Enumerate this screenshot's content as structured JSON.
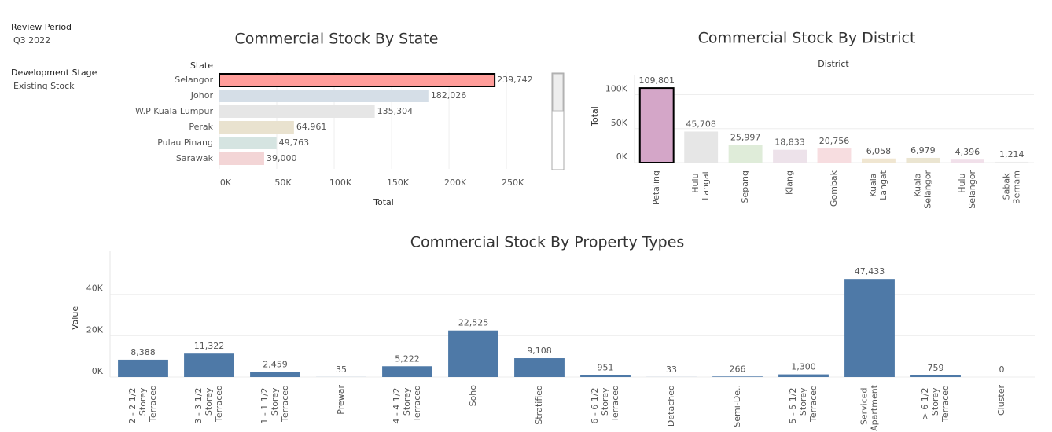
{
  "filters": [
    {
      "label": "Review Period",
      "value": "Q3 2022"
    },
    {
      "label": "Development Stage",
      "value": "Existing Stock"
    }
  ],
  "chart_data": [
    {
      "type": "hbar",
      "title": "Commercial Stock By State",
      "category_label": "State",
      "x_label": "Total",
      "categories": [
        "Selangor",
        "Johor",
        "W.P Kuala Lumpur",
        "Perak",
        "Pulau Pinang",
        "Sarawak"
      ],
      "values": [
        239742,
        182026,
        135304,
        64961,
        49763,
        39000
      ],
      "value_labels": [
        "239,742",
        "182,026",
        "135,304",
        "64,961",
        "49,763",
        "39,000"
      ],
      "colors": [
        "#ff9d9a",
        "#d5dee7",
        "#e6e6e6",
        "#e9e2cf",
        "#d5e4e1",
        "#f3d5d6"
      ],
      "selected": 0,
      "xlim": [
        0,
        265000
      ],
      "xticks": [
        {
          "value": 0,
          "label": "0K"
        },
        {
          "value": 50000,
          "label": "50K"
        },
        {
          "value": 100000,
          "label": "100K"
        },
        {
          "value": 150000,
          "label": "150K"
        },
        {
          "value": 200000,
          "label": "200K"
        },
        {
          "value": 250000,
          "label": "250K"
        }
      ],
      "grid": true
    },
    {
      "type": "bar",
      "title": "Commercial Stock By District",
      "category_label": "District",
      "y_label": "Total",
      "categories": [
        "Petaling",
        "Hulu Langat",
        "Sepang",
        "Klang",
        "Gombak",
        "Kuala Langat",
        "Kuala Selangor",
        "Hulu Selangor",
        "Sabak Bernam"
      ],
      "values": [
        109801,
        45708,
        25997,
        18833,
        20756,
        6058,
        6979,
        4396,
        1214
      ],
      "value_labels": [
        "109,801",
        "45,708",
        "25,997",
        "18,833",
        "20,756",
        "6,058",
        "6,979",
        "4,396",
        "1,214"
      ],
      "colors": [
        "#d4a6c8",
        "#e6e6e6",
        "#dfecd9",
        "#ede2ea",
        "#f7dde0",
        "#f0e6d1",
        "#ebe5d1",
        "#f1e0ea",
        "#ececec"
      ],
      "selected": 0,
      "ylim": [
        0,
        118000
      ],
      "yticks": [
        {
          "value": 0,
          "label": "0K"
        },
        {
          "value": 50000,
          "label": "50K"
        },
        {
          "value": 100000,
          "label": "100K"
        }
      ],
      "grid": true
    },
    {
      "type": "bar",
      "title": "Commercial Stock By Property Types",
      "y_label": "Value",
      "categories": [
        "2 - 2 1/2 Storey Terraced",
        "3 - 3 1/2 Storey Terraced",
        "1 - 1 1/2 Storey Terraced",
        "Prewar",
        "4 - 4 1/2 Storey Terraced",
        "Soho",
        "Stratified",
        "6 - 6 1/2 Storey Terraced",
        "Detached",
        "Semi-De..",
        "5 - 5 1/2 Storey Terraced",
        "Serviced Apartment",
        "> 6 1/2 Storey Terraced",
        "Cluster"
      ],
      "values": [
        8388,
        11322,
        2459,
        35,
        5222,
        22525,
        9108,
        951,
        33,
        266,
        1300,
        47433,
        759,
        0
      ],
      "value_labels": [
        "8,388",
        "11,322",
        "2,459",
        "35",
        "5,222",
        "22,525",
        "9,108",
        "951",
        "33",
        "266",
        "1,300",
        "47,433",
        "759",
        "0"
      ],
      "color": "#4e79a7",
      "ylim": [
        0,
        57000
      ],
      "yticks": [
        {
          "value": 0,
          "label": "0K"
        },
        {
          "value": 20000,
          "label": "20K"
        },
        {
          "value": 40000,
          "label": "40K"
        }
      ],
      "grid": true
    }
  ]
}
